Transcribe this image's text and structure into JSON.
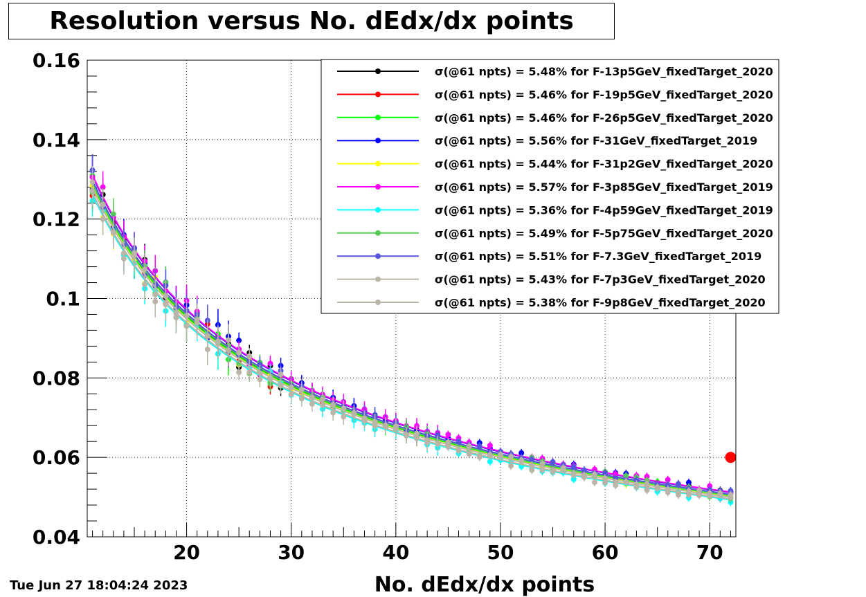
{
  "chart_data": {
    "type": "scatter",
    "title": "Resolution versus No. dEdx/dx points",
    "xlabel": "No. dEdx/dx points",
    "ylabel": "",
    "xlim": [
      10.5,
      72.5
    ],
    "ylim": [
      0.04,
      0.16
    ],
    "x_ticks": [
      20,
      30,
      40,
      50,
      60,
      70
    ],
    "x_tick_labels": [
      "20",
      "30",
      "40",
      "50",
      "60",
      "70"
    ],
    "y_ticks": [
      0.04,
      0.06,
      0.08,
      0.1,
      0.12,
      0.14,
      0.16
    ],
    "y_tick_labels": [
      "0.04",
      "0.06",
      "0.08",
      "0.1",
      "0.12",
      "0.14",
      "0.16"
    ],
    "grid": true,
    "legend_position": "top-right",
    "model": "sigma ~ A * n^-0.5 (fitted curves)",
    "series": [
      {
        "name": "σ(@61 npts) =  5.48% for F-13p5GeV_fixedTarget_2020",
        "color": "#000000",
        "value_at_61": 0.0548
      },
      {
        "name": "σ(@61 npts) =  5.46% for F-19p5GeV_fixedTarget_2020",
        "color": "#ff0000",
        "value_at_61": 0.0546
      },
      {
        "name": "σ(@61 npts) =  5.46% for F-26p5GeV_fixedTarget_2020",
        "color": "#00ff00",
        "value_at_61": 0.0546
      },
      {
        "name": "σ(@61 npts) =  5.56% for F-31GeV_fixedTarget_2019",
        "color": "#0000ff",
        "value_at_61": 0.0556
      },
      {
        "name": "σ(@61 npts) =  5.44% for F-31p2GeV_fixedTarget_2020",
        "color": "#ffff00",
        "value_at_61": 0.0544
      },
      {
        "name": "σ(@61 npts) =  5.57% for F-3p85GeV_fixedTarget_2019",
        "color": "#ff00ff",
        "value_at_61": 0.0557
      },
      {
        "name": "σ(@61 npts) =  5.36% for F-4p59GeV_fixedTarget_2019",
        "color": "#00ffff",
        "value_at_61": 0.0536
      },
      {
        "name": "σ(@61 npts) =  5.49% for F-5p75GeV_fixedTarget_2020",
        "color": "#55cc55",
        "value_at_61": 0.0549
      },
      {
        "name": "σ(@61 npts) =  5.51% for F-7.3GeV_fixedTarget_2019",
        "color": "#5555dd",
        "value_at_61": 0.0551
      },
      {
        "name": "σ(@61 npts) =  5.43% for F-7p3GeV_fixedTarget_2020",
        "color": "#bbb5a8",
        "value_at_61": 0.0543
      },
      {
        "name": "σ(@61 npts) =  5.38% for F-9p8GeV_fixedTarget_2020",
        "color": "#bbb5a8",
        "value_at_61": 0.0538
      }
    ],
    "extra_point": {
      "x": 72,
      "y": 0.06,
      "color": "#ff0000"
    }
  },
  "timestamp": "Tue Jun 27 18:04:24 2023"
}
